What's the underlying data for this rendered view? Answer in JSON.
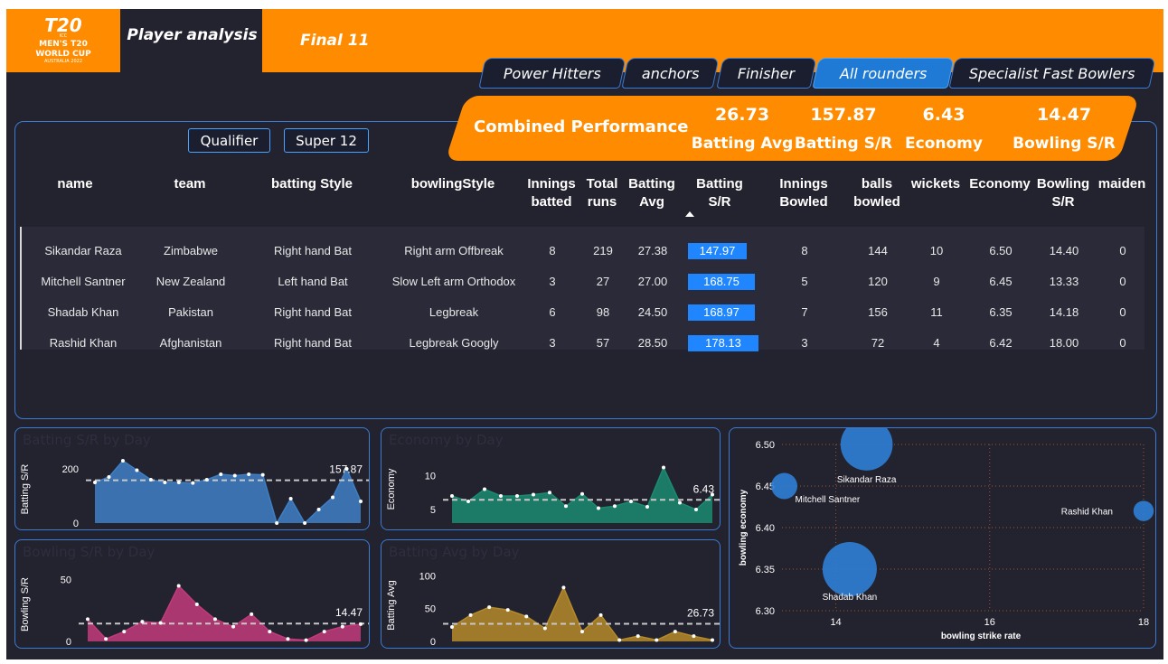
{
  "logo": {
    "mark": "T20",
    "line1": "ICC",
    "line2": "MEN'S T20",
    "line3": "WORLD CUP",
    "line4": "AUSTRALIA 2022"
  },
  "header": {
    "tab_player": "Player analysis",
    "tab_final": "Final 11"
  },
  "category_tabs": [
    "Power Hitters",
    "anchors",
    "Finisher",
    "All rounders",
    "Specialist Fast Bowlers"
  ],
  "active_category": "All rounders",
  "combined": {
    "title": "Combined Performance",
    "kpis": [
      {
        "value": "26.73",
        "label": "Batting Avg"
      },
      {
        "value": "157.87",
        "label": "Batting S/R"
      },
      {
        "value": "6.43",
        "label": "Economy"
      },
      {
        "value": "14.47",
        "label": "Bowling S/R"
      }
    ]
  },
  "stage_filters": [
    "Qualifier",
    "Super 12"
  ],
  "table": {
    "columns": [
      "name",
      "team",
      "batting Style",
      "bowlingStyle",
      "Innings batted",
      "Total runs",
      "Batting Avg",
      "Batting S/R",
      "Innings Bowled",
      "balls bowled",
      "wickets",
      "Economy",
      "Bowling S/R",
      "maiden"
    ],
    "rows": [
      {
        "name": "Sikandar Raza",
        "team": "Zimbabwe",
        "batting_style": "Right hand Bat",
        "bowling_style": "Right arm Offbreak",
        "innings_batted": "8",
        "total_runs": "219",
        "batting_avg": "27.38",
        "batting_sr": "147.97",
        "innings_bowled": "8",
        "balls_bowled": "144",
        "wickets": "10",
        "economy": "6.50",
        "bowling_sr": "14.40",
        "maiden": "0"
      },
      {
        "name": "Mitchell Santner",
        "team": "New Zealand",
        "batting_style": "Left hand Bat",
        "bowling_style": "Slow Left arm Orthodox",
        "innings_batted": "3",
        "total_runs": "27",
        "batting_avg": "27.00",
        "batting_sr": "168.75",
        "innings_bowled": "5",
        "balls_bowled": "120",
        "wickets": "9",
        "economy": "6.45",
        "bowling_sr": "13.33",
        "maiden": "0"
      },
      {
        "name": "Shadab Khan",
        "team": "Pakistan",
        "batting_style": "Right hand Bat",
        "bowling_style": "Legbreak",
        "innings_batted": "6",
        "total_runs": "98",
        "batting_avg": "24.50",
        "batting_sr": "168.97",
        "innings_bowled": "7",
        "balls_bowled": "156",
        "wickets": "11",
        "economy": "6.35",
        "bowling_sr": "14.18",
        "maiden": "0"
      },
      {
        "name": "Rashid Khan",
        "team": "Afghanistan",
        "batting_style": "Right hand Bat",
        "bowling_style": "Legbreak Googly",
        "innings_batted": "3",
        "total_runs": "57",
        "batting_avg": "28.50",
        "batting_sr": "178.13",
        "innings_bowled": "3",
        "balls_bowled": "72",
        "wickets": "4",
        "economy": "6.42",
        "bowling_sr": "18.00",
        "maiden": "0"
      }
    ]
  },
  "charts": {
    "batting_sr": {
      "title": "Batting S/R by Day",
      "ylabel": "Batting S/R",
      "yticks": [
        0,
        200
      ],
      "ylim": [
        0,
        250
      ],
      "ref": 157.87,
      "ref_label": "157.87",
      "color": "#3f7fc4",
      "values": [
        150,
        170,
        230,
        195,
        160,
        150,
        150,
        148,
        160,
        180,
        175,
        180,
        178,
        0,
        90,
        0,
        50,
        95,
        200,
        80
      ]
    },
    "economy": {
      "title": "Economy by Day",
      "ylabel": "Economy",
      "yticks": [
        5,
        10
      ],
      "ylim": [
        3,
        13
      ],
      "ref": 6.43,
      "ref_label": "6.43",
      "color": "#1b8b70",
      "values": [
        7,
        6.2,
        8,
        7,
        7,
        7.2,
        7.5,
        5.5,
        7.3,
        5.2,
        5.5,
        6.2,
        5.4,
        11.2,
        6,
        5,
        7.2
      ]
    },
    "bowling_sr": {
      "title": "Bowling S/R by Day",
      "ylabel": "Bowling S/R",
      "yticks": [
        0,
        50
      ],
      "ylim": [
        0,
        60
      ],
      "ref": 14.47,
      "ref_label": "14.47",
      "color": "#c23b7a",
      "values": [
        18,
        2,
        8,
        16,
        15,
        45,
        30,
        18,
        12,
        22,
        8,
        2,
        1,
        8,
        12,
        14
      ]
    },
    "batting_avg": {
      "title": "Batting Avg by Day",
      "ylabel": "Batting Avg",
      "yticks": [
        0,
        50,
        100
      ],
      "ylim": [
        0,
        110
      ],
      "ref": 26.73,
      "ref_label": "26.73",
      "color": "#b58a2a",
      "values": [
        22,
        40,
        52,
        48,
        38,
        20,
        82,
        15,
        40,
        2,
        8,
        2,
        15,
        8,
        2
      ]
    }
  },
  "scatter": {
    "xlabel": "bowling strike rate",
    "ylabel": "bowling economy",
    "xticks": [
      "14",
      "16",
      "18"
    ],
    "yticks": [
      "6.30",
      "6.35",
      "6.40",
      "6.45",
      "6.50"
    ],
    "xlim": [
      13.3,
      18
    ],
    "ylim": [
      6.3,
      6.5
    ],
    "points": [
      {
        "name": "Sikandar Raza",
        "x": 14.4,
        "y": 6.5,
        "balls": 144
      },
      {
        "name": "Mitchell Santner",
        "x": 13.33,
        "y": 6.45,
        "balls": 120
      },
      {
        "name": "Shadab Khan",
        "x": 14.18,
        "y": 6.35,
        "balls": 156
      },
      {
        "name": "Rashid Khan",
        "x": 18.0,
        "y": 6.42,
        "balls": 72
      }
    ],
    "color": "#2f7fd6"
  }
}
